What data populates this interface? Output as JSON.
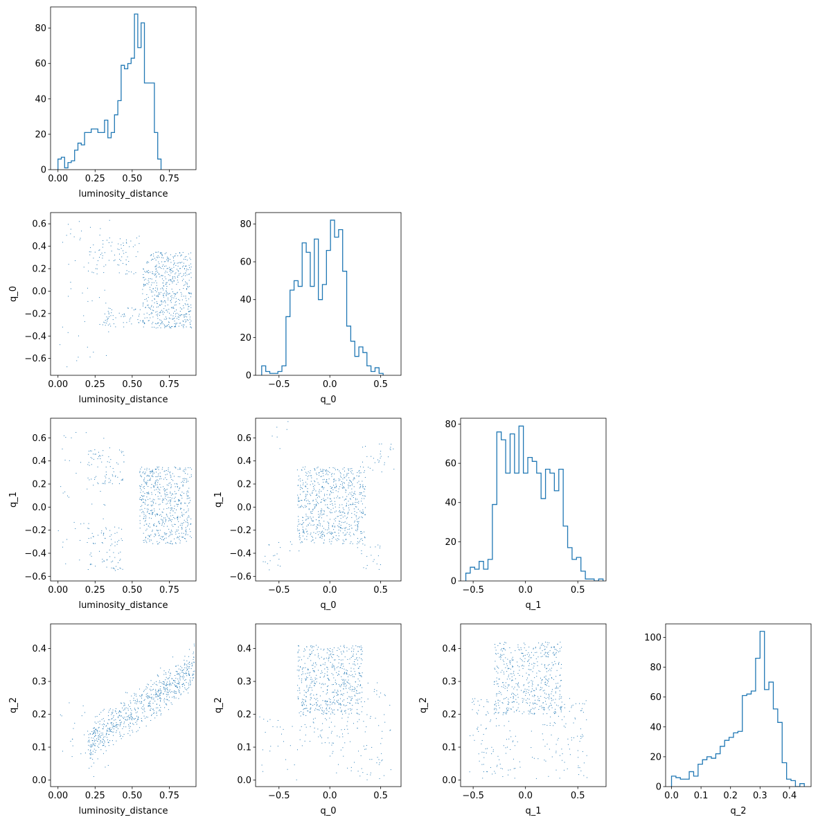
{
  "style": {
    "color": "#1f77b4"
  },
  "chart_data": [
    {
      "id": "hist-luminosity_distance",
      "type": "histogram",
      "row": 0,
      "col": 0,
      "xlabel": "luminosity_distance",
      "ylabel": "",
      "xlim": [
        -0.05,
        0.93
      ],
      "ylim": [
        0,
        92
      ],
      "xticks": [
        0.0,
        0.25,
        0.5,
        0.75
      ],
      "xtick_labels": [
        "0.00",
        "0.25",
        "0.50",
        "0.75"
      ],
      "yticks": [
        0,
        20,
        40,
        60,
        80
      ],
      "ytick_labels": [
        "0",
        "20",
        "40",
        "60",
        "80"
      ],
      "bin_start": 0.0,
      "bin_width": 0.0224,
      "counts": [
        6,
        7,
        1,
        4,
        5,
        11,
        15,
        14,
        21,
        21,
        23,
        23,
        21,
        21,
        28,
        18,
        21,
        31,
        39,
        59,
        57,
        60,
        63,
        88,
        69,
        83,
        49,
        49,
        49,
        21,
        6
      ]
    },
    {
      "id": "scatter-luminosity_distance-q_0",
      "type": "scatter",
      "row": 1,
      "col": 0,
      "xlabel": "luminosity_distance",
      "ylabel": "q_0",
      "xlim": [
        -0.05,
        0.93
      ],
      "ylim": [
        -0.75,
        0.7
      ],
      "xticks": [
        0.0,
        0.25,
        0.5,
        0.75
      ],
      "xtick_labels": [
        "0.00",
        "0.25",
        "0.50",
        "0.75"
      ],
      "yticks": [
        -0.6,
        -0.4,
        -0.2,
        0.0,
        0.2,
        0.4,
        0.6
      ],
      "ytick_labels": [
        "−0.6",
        "−0.4",
        "−0.2",
        "0.0",
        "0.2",
        "0.4",
        "0.6"
      ],
      "clusters": [
        {
          "n": 560,
          "x": [
            0.57,
            0.9
          ],
          "y": [
            -0.33,
            0.35
          ]
        },
        {
          "n": 80,
          "x": [
            0.2,
            0.55
          ],
          "y": [
            0.15,
            0.5
          ]
        },
        {
          "n": 60,
          "x": [
            0.3,
            0.58
          ],
          "y": [
            -0.32,
            -0.15
          ]
        },
        {
          "n": 45,
          "x": [
            0.0,
            0.35
          ],
          "y": [
            -0.7,
            0.65
          ]
        }
      ]
    },
    {
      "id": "scatter-luminosity_distance-q_1",
      "type": "scatter",
      "row": 2,
      "col": 0,
      "xlabel": "luminosity_distance",
      "ylabel": "q_1",
      "xlim": [
        -0.05,
        0.93
      ],
      "ylim": [
        -0.64,
        0.77
      ],
      "xticks": [
        0.0,
        0.25,
        0.5,
        0.75
      ],
      "xtick_labels": [
        "0.00",
        "0.25",
        "0.50",
        "0.75"
      ],
      "yticks": [
        -0.6,
        -0.4,
        -0.2,
        0.0,
        0.2,
        0.4,
        0.6
      ],
      "ytick_labels": [
        "−0.6",
        "−0.4",
        "−0.2",
        "0.0",
        "0.2",
        "0.4",
        "0.6"
      ],
      "clusters": [
        {
          "n": 580,
          "x": [
            0.55,
            0.9
          ],
          "y": [
            -0.32,
            0.35
          ]
        },
        {
          "n": 70,
          "x": [
            0.2,
            0.45
          ],
          "y": [
            0.2,
            0.5
          ]
        },
        {
          "n": 70,
          "x": [
            0.2,
            0.45
          ],
          "y": [
            -0.55,
            -0.15
          ]
        },
        {
          "n": 50,
          "x": [
            0.0,
            0.35
          ],
          "y": [
            -0.55,
            0.7
          ]
        }
      ]
    },
    {
      "id": "hist-q_0",
      "type": "histogram",
      "row": 1,
      "col": 1,
      "xlabel": "q_0",
      "ylabel": "",
      "xlim": [
        -0.73,
        0.7
      ],
      "ylim": [
        0,
        86
      ],
      "xticks": [
        -0.5,
        0.0,
        0.5
      ],
      "xtick_labels": [
        "−0.5",
        "0.0",
        "0.5"
      ],
      "yticks": [
        0,
        20,
        40,
        60,
        80
      ],
      "ytick_labels": [
        "0",
        "20",
        "40",
        "60",
        "80"
      ],
      "bin_start": -0.67,
      "bin_width": 0.0398,
      "counts": [
        5,
        2,
        1,
        1,
        2,
        5,
        31,
        45,
        50,
        47,
        70,
        65,
        47,
        72,
        40,
        48,
        66,
        82,
        73,
        77,
        55,
        26,
        18,
        10,
        15,
        12,
        5,
        2,
        4,
        1
      ]
    },
    {
      "id": "scatter-q_0-q_1",
      "type": "scatter",
      "row": 2,
      "col": 1,
      "xlabel": "q_0",
      "ylabel": "q_1",
      "xlim": [
        -0.73,
        0.7
      ],
      "ylim": [
        -0.64,
        0.77
      ],
      "xticks": [
        -0.5,
        0.0,
        0.5
      ],
      "xtick_labels": [
        "−0.5",
        "0.0",
        "0.5"
      ],
      "yticks": [
        -0.6,
        -0.4,
        -0.2,
        0.0,
        0.2,
        0.4,
        0.6
      ],
      "ytick_labels": [
        "−0.6",
        "−0.4",
        "−0.2",
        "0.0",
        "0.2",
        "0.4",
        "0.6"
      ],
      "clusters": [
        {
          "n": 700,
          "x": [
            -0.32,
            0.35
          ],
          "y": [
            -0.32,
            0.35
          ]
        },
        {
          "n": 30,
          "x": [
            0.3,
            0.65
          ],
          "y": [
            0.3,
            0.55
          ]
        },
        {
          "n": 20,
          "x": [
            -0.7,
            -0.3
          ],
          "y": [
            -0.55,
            -0.3
          ]
        },
        {
          "n": 20,
          "x": [
            0.25,
            0.5
          ],
          "y": [
            -0.55,
            -0.3
          ]
        },
        {
          "n": 6,
          "x": [
            -0.6,
            -0.3
          ],
          "y": [
            0.4,
            0.75
          ]
        }
      ]
    },
    {
      "id": "hist-q_1",
      "type": "histogram",
      "row": 2,
      "col": 2,
      "xlabel": "q_1",
      "ylabel": "",
      "xlim": [
        -0.62,
        0.77
      ],
      "ylim": [
        0,
        83
      ],
      "xticks": [
        -0.5,
        0.0,
        0.5
      ],
      "xtick_labels": [
        "−0.5",
        "0.0",
        "0.5"
      ],
      "yticks": [
        0,
        20,
        40,
        60,
        80
      ],
      "ytick_labels": [
        "0",
        "20",
        "40",
        "60",
        "80"
      ],
      "bin_start": -0.57,
      "bin_width": 0.0423,
      "counts": [
        4,
        7,
        6,
        10,
        6,
        11,
        39,
        76,
        72,
        55,
        75,
        55,
        79,
        55,
        63,
        61,
        55,
        42,
        57,
        55,
        46,
        57,
        28,
        17,
        11,
        12,
        5,
        1,
        1,
        0,
        1
      ]
    },
    {
      "id": "scatter-luminosity_distance-q_2",
      "type": "scatter",
      "row": 3,
      "col": 0,
      "xlabel": "luminosity_distance",
      "ylabel": "q_2",
      "xlim": [
        -0.05,
        0.93
      ],
      "ylim": [
        -0.02,
        0.475
      ],
      "xticks": [
        0.0,
        0.25,
        0.5,
        0.75
      ],
      "xtick_labels": [
        "0.00",
        "0.25",
        "0.50",
        "0.75"
      ],
      "yticks": [
        0.0,
        0.1,
        0.2,
        0.3,
        0.4
      ],
      "ytick_labels": [
        "0.0",
        "0.1",
        "0.2",
        "0.3",
        "0.4"
      ],
      "trend": {
        "n": 720,
        "x": [
          0.2,
          0.92
        ],
        "y_at_start": 0.11,
        "slope": 0.32,
        "spread": 0.06
      },
      "clusters": [
        {
          "n": 30,
          "x": [
            0.0,
            0.35
          ],
          "y": [
            0.0,
            0.25
          ]
        }
      ]
    },
    {
      "id": "scatter-q_0-q_2",
      "type": "scatter",
      "row": 3,
      "col": 1,
      "xlabel": "q_0",
      "ylabel": "q_2",
      "xlim": [
        -0.73,
        0.7
      ],
      "ylim": [
        -0.02,
        0.475
      ],
      "xticks": [
        -0.5,
        0.0,
        0.5
      ],
      "xtick_labels": [
        "−0.5",
        "0.0",
        "0.5"
      ],
      "yticks": [
        0.0,
        0.1,
        0.2,
        0.3,
        0.4
      ],
      "ytick_labels": [
        "0.0",
        "0.1",
        "0.2",
        "0.3",
        "0.4"
      ],
      "clusters": [
        {
          "n": 520,
          "x": [
            -0.32,
            0.32
          ],
          "y": [
            0.2,
            0.41
          ]
        },
        {
          "n": 120,
          "x": [
            0.0,
            0.6
          ],
          "y": [
            0.0,
            0.3
          ]
        },
        {
          "n": 60,
          "x": [
            -0.3,
            0.0
          ],
          "y": [
            0.1,
            0.25
          ]
        },
        {
          "n": 25,
          "x": [
            -0.7,
            -0.3
          ],
          "y": [
            0.0,
            0.2
          ]
        }
      ]
    },
    {
      "id": "scatter-q_1-q_2",
      "type": "scatter",
      "row": 3,
      "col": 2,
      "xlabel": "q_1",
      "ylabel": "q_2",
      "xlim": [
        -0.62,
        0.77
      ],
      "ylim": [
        -0.02,
        0.475
      ],
      "xticks": [
        -0.5,
        0.0,
        0.5
      ],
      "xtick_labels": [
        "−0.5",
        "0.0",
        "0.5"
      ],
      "yticks": [
        0.0,
        0.1,
        0.2,
        0.3,
        0.4
      ],
      "ytick_labels": [
        "0.0",
        "0.1",
        "0.2",
        "0.3",
        "0.4"
      ],
      "clusters": [
        {
          "n": 520,
          "x": [
            -0.3,
            0.35
          ],
          "y": [
            0.2,
            0.42
          ]
        },
        {
          "n": 100,
          "x": [
            0.05,
            0.6
          ],
          "y": [
            0.0,
            0.25
          ]
        },
        {
          "n": 100,
          "x": [
            -0.55,
            -0.05
          ],
          "y": [
            0.0,
            0.25
          ]
        }
      ]
    },
    {
      "id": "hist-q_2",
      "type": "histogram",
      "row": 3,
      "col": 3,
      "xlabel": "q_2",
      "ylabel": "",
      "xlim": [
        -0.02,
        0.473
      ],
      "ylim": [
        0,
        109
      ],
      "xticks": [
        0.0,
        0.1,
        0.2,
        0.3,
        0.4
      ],
      "xtick_labels": [
        "0.0",
        "0.1",
        "0.2",
        "0.3",
        "0.4"
      ],
      "yticks": [
        0,
        20,
        40,
        60,
        80,
        100
      ],
      "ytick_labels": [
        "0",
        "20",
        "40",
        "60",
        "80",
        "100"
      ],
      "bin_start": 0.0,
      "bin_width": 0.015,
      "counts": [
        7,
        6,
        5,
        5,
        10,
        7,
        15,
        18,
        20,
        19,
        22,
        27,
        31,
        33,
        36,
        37,
        61,
        62,
        64,
        86,
        104,
        65,
        70,
        52,
        43,
        16,
        5,
        4,
        0,
        2
      ]
    }
  ]
}
